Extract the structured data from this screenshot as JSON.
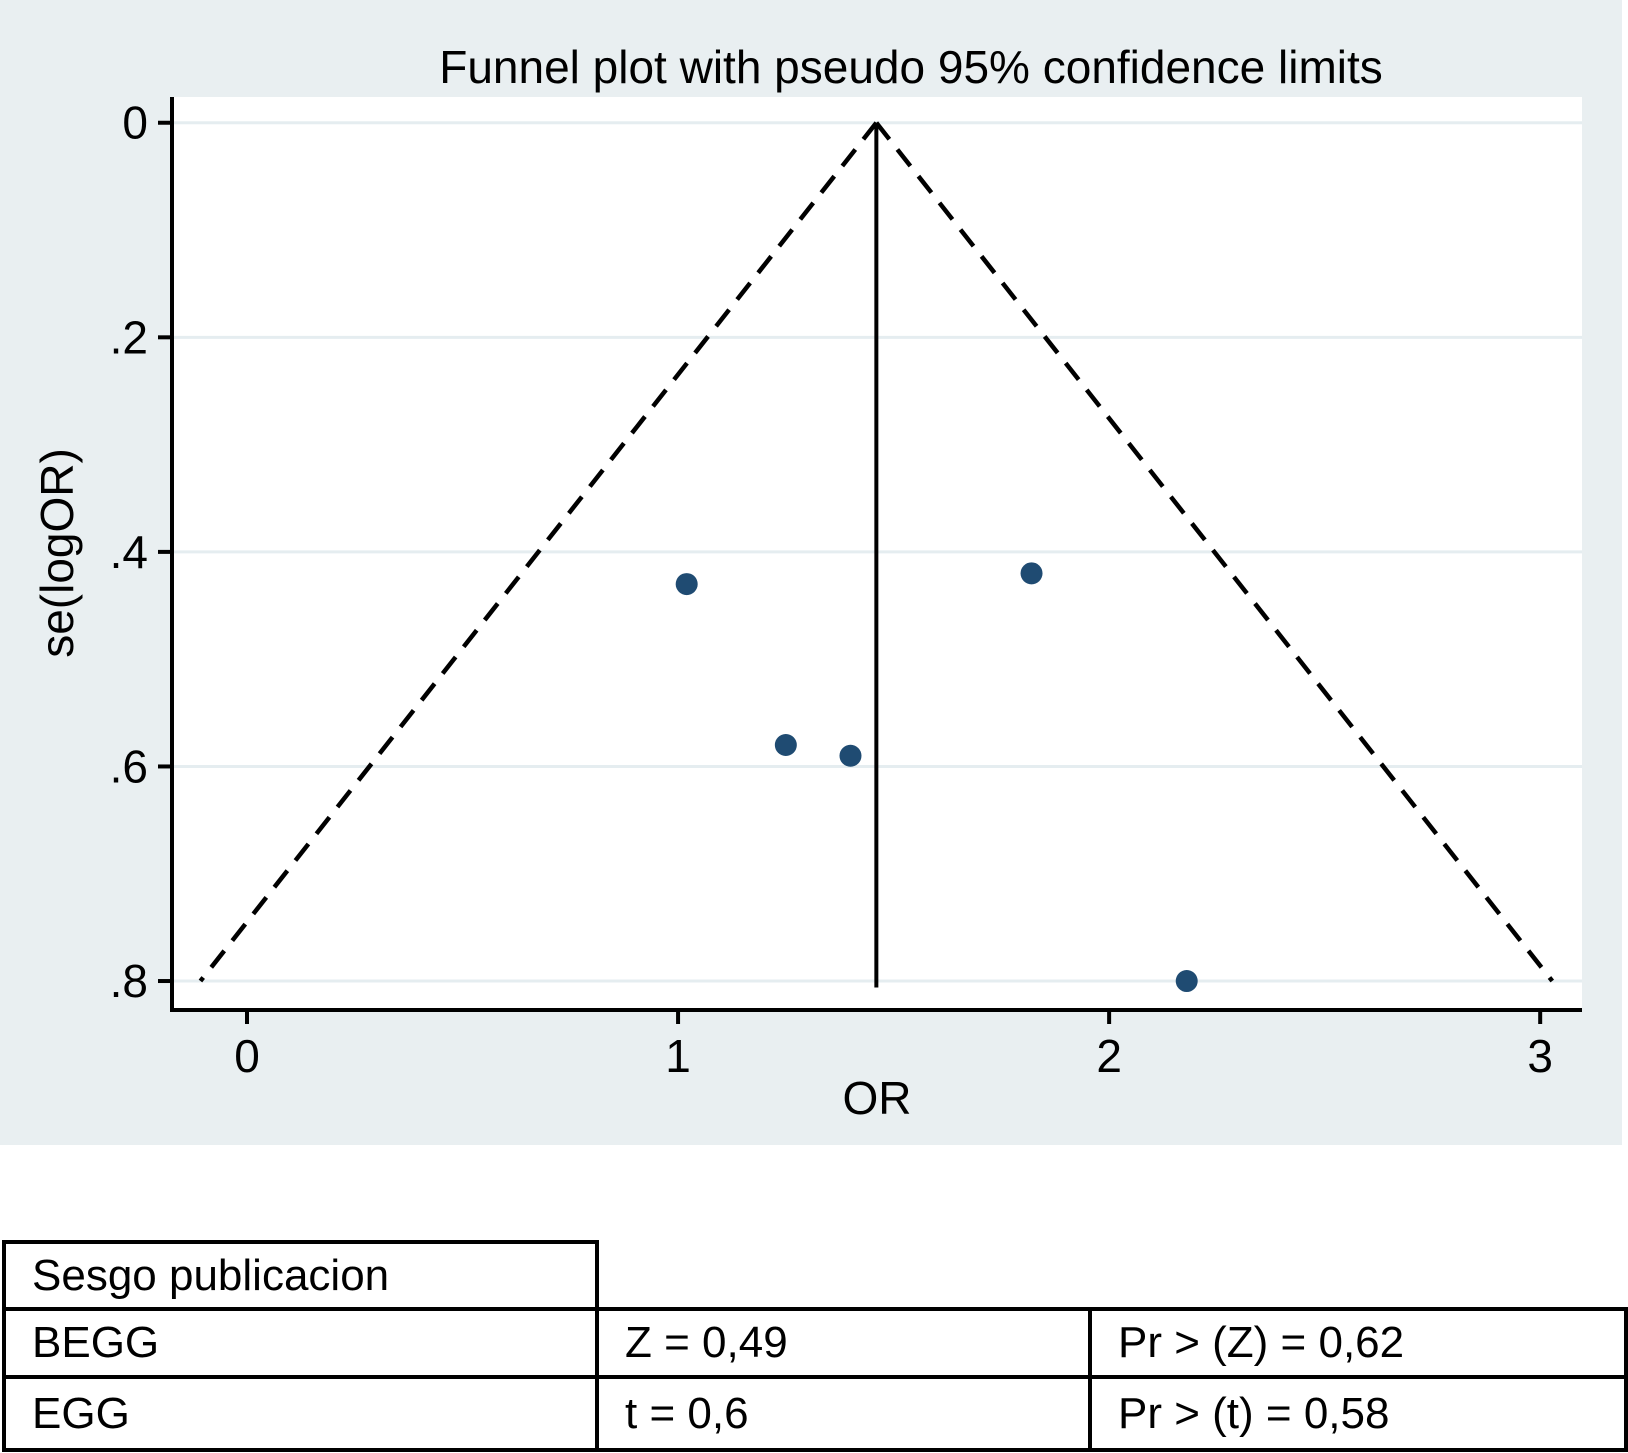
{
  "figure": {
    "background": "#e9eff1",
    "plot_bg": "#ffffff",
    "grid_color": "#e5edf0",
    "axis_color": "#000000",
    "line_color": "#000000",
    "point_color": "#1f4b72"
  },
  "chart_data": {
    "type": "scatter",
    "title": "Funnel plot with pseudo 95% confidence limits",
    "xlabel": "OR",
    "ylabel": "se(logOR)",
    "grid": "horizontal",
    "y_axis_inverted": true,
    "xlim": [
      -0.174,
      3.097
    ],
    "ylim": [
      -0.024,
      0.827
    ],
    "x_ticks": [
      {
        "value": 0,
        "label": "0"
      },
      {
        "value": 1,
        "label": "1"
      },
      {
        "value": 2,
        "label": "2"
      },
      {
        "value": 3,
        "label": "3"
      }
    ],
    "y_ticks": [
      {
        "value": 0,
        "label": "0"
      },
      {
        "value": 0.2,
        "label": ".2"
      },
      {
        "value": 0.4,
        "label": ".4"
      },
      {
        "value": 0.6,
        "label": ".6"
      },
      {
        "value": 0.8,
        "label": ".8"
      }
    ],
    "points": [
      {
        "or": 1.02,
        "se": 0.43
      },
      {
        "or": 1.25,
        "se": 0.58
      },
      {
        "or": 1.4,
        "se": 0.59
      },
      {
        "or": 1.82,
        "se": 0.42
      },
      {
        "or": 2.18,
        "se": 0.8
      }
    ],
    "pooled_or": 1.46,
    "pooled_line_se_range": [
      0,
      0.806
    ],
    "funnel": {
      "apex_or": 1.46,
      "max_se": 0.8,
      "z": 1.96,
      "style": "dashed"
    }
  },
  "table": {
    "header_label": "Sesgo publicacion",
    "rows": [
      {
        "test": "BEGG",
        "stat": "Z = 0,49",
        "p": "Pr > (Z) = 0,62"
      },
      {
        "test": "EGG",
        "stat": "t = 0,6",
        "p": "Pr > (t) = 0,58"
      }
    ]
  }
}
